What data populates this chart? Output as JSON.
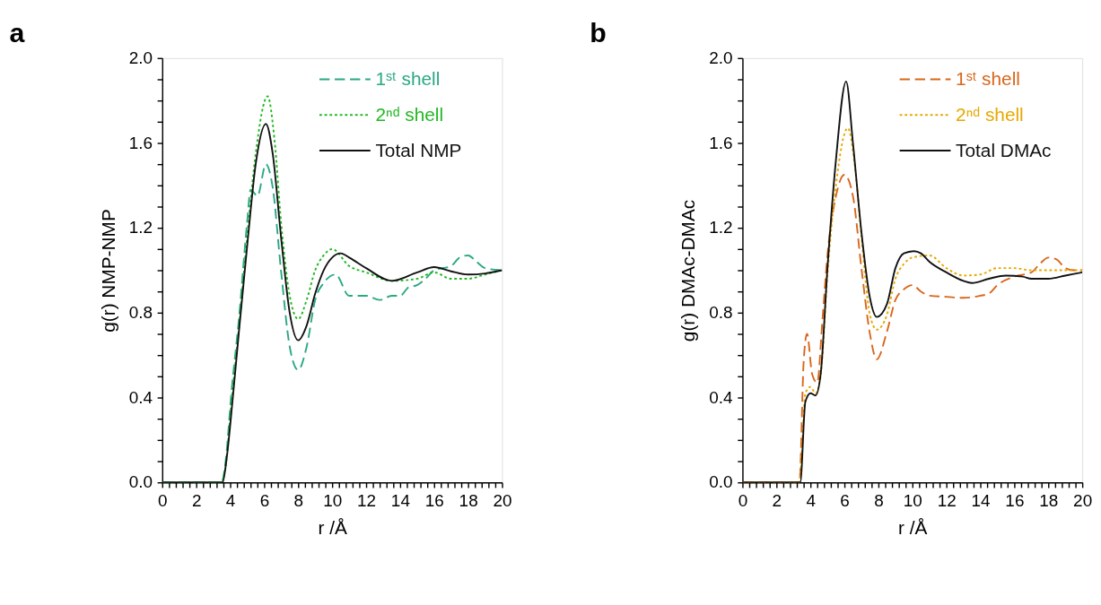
{
  "chart_data": [
    {
      "type": "line",
      "title": "a",
      "xlabel": "r /Å",
      "ylabel": "g(r) NMP-NMP",
      "legend": "top right",
      "xlim": [
        0,
        20
      ],
      "ylim": [
        0,
        2.0
      ],
      "xticks": [
        0,
        {
          "value": 0.4,
          "label": null
        },
        {
          "value": 0.8,
          "label": null
        },
        {
          "value": 1.2,
          "label": null
        },
        {
          "value": 1.6,
          "label": null
        },
        2,
        {
          "value": 2.4,
          "label": null
        },
        {
          "value": 2.8,
          "label": null
        },
        {
          "value": 3.2,
          "label": null
        },
        {
          "value": 3.6,
          "label": null
        },
        4,
        {
          "value": 4.4,
          "label": null
        },
        {
          "value": 4.8,
          "label": null
        },
        {
          "value": 5.2,
          "label": null
        },
        {
          "value": 5.6,
          "label": null
        },
        6,
        {
          "value": 6.4,
          "label": null
        },
        {
          "value": 6.8,
          "label": null
        },
        {
          "value": 7.2,
          "label": null
        },
        {
          "value": 7.6,
          "label": null
        },
        8,
        {
          "value": 8.4,
          "label": null
        },
        {
          "value": 8.8,
          "label": null
        },
        {
          "value": 9.2,
          "label": null
        },
        {
          "value": 9.6,
          "label": null
        },
        10,
        {
          "value": 10.4,
          "label": null
        },
        {
          "value": 10.8,
          "label": null
        },
        {
          "value": 11.2,
          "label": null
        },
        {
          "value": 11.6,
          "label": null
        },
        12,
        {
          "value": 12.4,
          "label": null
        },
        {
          "value": 12.8,
          "label": null
        },
        {
          "value": 13.2,
          "label": null
        },
        {
          "value": 13.6,
          "label": null
        },
        14,
        {
          "value": 14.4,
          "label": null
        },
        {
          "value": 14.8,
          "label": null
        },
        {
          "value": 15.2,
          "label": null
        },
        {
          "value": 15.6,
          "label": null
        },
        16,
        {
          "value": 16.4,
          "label": null
        },
        {
          "value": 16.8,
          "label": null
        },
        {
          "value": 17.2,
          "label": null
        },
        {
          "value": 17.6,
          "label": null
        },
        18,
        {
          "value": 18.4,
          "label": null
        },
        {
          "value": 18.8,
          "label": null
        },
        {
          "value": 19.2,
          "label": null
        },
        {
          "value": 19.6,
          "label": null
        },
        20
      ],
      "yticks": [
        {
          "value": 0,
          "label": "0.0"
        },
        {
          "value": 0.1,
          "label": null
        },
        {
          "value": 0.2,
          "label": null
        },
        {
          "value": 0.3,
          "label": null
        },
        {
          "value": 0.4,
          "label": "0.4"
        },
        {
          "value": 0.5,
          "label": null
        },
        {
          "value": 0.6,
          "label": null
        },
        {
          "value": 0.7,
          "label": null
        },
        {
          "value": 0.8,
          "label": "0.8"
        },
        {
          "value": 0.9,
          "label": null
        },
        {
          "value": 1.0,
          "label": null
        },
        {
          "value": 1.1,
          "label": null
        },
        {
          "value": 1.2,
          "label": "1.2"
        },
        {
          "value": 1.3,
          "label": null
        },
        {
          "value": 1.4,
          "label": null
        },
        {
          "value": 1.5,
          "label": null
        },
        {
          "value": 1.6,
          "label": "1.6"
        },
        {
          "value": 1.7,
          "label": null
        },
        {
          "value": 1.8,
          "label": null
        },
        {
          "value": 1.9,
          "label": null
        },
        {
          "value": 2.0,
          "label": "2.0"
        }
      ],
      "series": [
        {
          "name": "1ˢᵗ shell",
          "color": "#2aa884",
          "line_style": "dashed",
          "x": [
            0,
            2,
            3.5,
            3.7,
            4.1,
            4.5,
            5.0,
            5.2,
            5.6,
            6.1,
            6.5,
            7.0,
            7.5,
            8.0,
            8.5,
            9.0,
            9.5,
            10.2,
            11.0,
            12.0,
            12.8,
            13.5,
            14.0,
            14.5,
            15.0,
            15.5,
            16.0,
            17.0,
            17.5,
            18.0,
            18.5,
            19.0,
            20
          ],
          "values": [
            0,
            0,
            0,
            0.08,
            0.45,
            0.76,
            1.23,
            1.38,
            1.35,
            1.5,
            1.39,
            0.99,
            0.64,
            0.53,
            0.64,
            0.86,
            0.94,
            0.98,
            0.88,
            0.88,
            0.86,
            0.88,
            0.88,
            0.92,
            0.93,
            0.96,
            1.0,
            1.02,
            1.06,
            1.07,
            1.04,
            1.01,
            1.0
          ]
        },
        {
          "name": "2ⁿᵈ shell",
          "color": "#22b822",
          "line_style": "dotted",
          "x": [
            0,
            2,
            3.5,
            3.7,
            4.1,
            4.5,
            5.0,
            5.5,
            6.2,
            6.6,
            7.0,
            7.5,
            8.0,
            8.5,
            9.0,
            9.5,
            10.0,
            11.0,
            12.0,
            13.5,
            15.0,
            16.0,
            17.0,
            18.0,
            19.0,
            20
          ],
          "values": [
            0,
            0,
            0,
            0.06,
            0.4,
            0.72,
            1.16,
            1.55,
            1.82,
            1.62,
            1.22,
            0.88,
            0.77,
            0.86,
            1.0,
            1.07,
            1.1,
            1.02,
            0.99,
            0.95,
            0.96,
            0.99,
            0.96,
            0.96,
            0.98,
            1.0
          ]
        },
        {
          "name": "Total NMP",
          "color": "#111111",
          "line_style": "solid",
          "x": [
            0,
            2,
            3.55,
            3.8,
            4.13,
            4.5,
            5.04,
            5.5,
            6.1,
            6.5,
            7.0,
            7.5,
            8.0,
            8.5,
            9.0,
            9.5,
            10.0,
            10.5,
            11.0,
            12.0,
            13.5,
            15.0,
            16.0,
            17.0,
            18.0,
            19.0,
            20
          ],
          "values": [
            0,
            0,
            0,
            0.12,
            0.38,
            0.7,
            1.15,
            1.5,
            1.69,
            1.55,
            1.15,
            0.8,
            0.67,
            0.74,
            0.89,
            1.0,
            1.06,
            1.08,
            1.06,
            1.01,
            0.95,
            0.99,
            1.015,
            0.995,
            0.98,
            0.985,
            1.0
          ]
        }
      ]
    },
    {
      "type": "line",
      "title": "b",
      "xlabel": "r /Å",
      "ylabel": "g(r) DMAc-DMAc",
      "legend": "top right",
      "xlim": [
        0,
        20
      ],
      "ylim": [
        0,
        2.0
      ],
      "xticks": [
        0,
        {
          "value": 0.4,
          "label": null
        },
        {
          "value": 0.8,
          "label": null
        },
        {
          "value": 1.2,
          "label": null
        },
        {
          "value": 1.6,
          "label": null
        },
        2,
        {
          "value": 2.4,
          "label": null
        },
        {
          "value": 2.8,
          "label": null
        },
        {
          "value": 3.2,
          "label": null
        },
        {
          "value": 3.6,
          "label": null
        },
        4,
        {
          "value": 4.4,
          "label": null
        },
        {
          "value": 4.8,
          "label": null
        },
        {
          "value": 5.2,
          "label": null
        },
        {
          "value": 5.6,
          "label": null
        },
        6,
        {
          "value": 6.4,
          "label": null
        },
        {
          "value": 6.8,
          "label": null
        },
        {
          "value": 7.2,
          "label": null
        },
        {
          "value": 7.6,
          "label": null
        },
        8,
        {
          "value": 8.4,
          "label": null
        },
        {
          "value": 8.8,
          "label": null
        },
        {
          "value": 9.2,
          "label": null
        },
        {
          "value": 9.6,
          "label": null
        },
        10,
        {
          "value": 10.4,
          "label": null
        },
        {
          "value": 10.8,
          "label": null
        },
        {
          "value": 11.2,
          "label": null
        },
        {
          "value": 11.6,
          "label": null
        },
        12,
        {
          "value": 12.4,
          "label": null
        },
        {
          "value": 12.8,
          "label": null
        },
        {
          "value": 13.2,
          "label": null
        },
        {
          "value": 13.6,
          "label": null
        },
        14,
        {
          "value": 14.4,
          "label": null
        },
        {
          "value": 14.8,
          "label": null
        },
        {
          "value": 15.2,
          "label": null
        },
        {
          "value": 15.6,
          "label": null
        },
        16,
        {
          "value": 16.4,
          "label": null
        },
        {
          "value": 16.8,
          "label": null
        },
        {
          "value": 17.2,
          "label": null
        },
        {
          "value": 17.6,
          "label": null
        },
        18,
        {
          "value": 18.4,
          "label": null
        },
        {
          "value": 18.8,
          "label": null
        },
        {
          "value": 19.2,
          "label": null
        },
        {
          "value": 19.6,
          "label": null
        },
        20
      ],
      "yticks": [
        {
          "value": 0,
          "label": "0.0"
        },
        {
          "value": 0.1,
          "label": null
        },
        {
          "value": 0.2,
          "label": null
        },
        {
          "value": 0.3,
          "label": null
        },
        {
          "value": 0.4,
          "label": "0.4"
        },
        {
          "value": 0.5,
          "label": null
        },
        {
          "value": 0.6,
          "label": null
        },
        {
          "value": 0.7,
          "label": null
        },
        {
          "value": 0.8,
          "label": "0.8"
        },
        {
          "value": 0.9,
          "label": null
        },
        {
          "value": 1.0,
          "label": null
        },
        {
          "value": 1.1,
          "label": null
        },
        {
          "value": 1.2,
          "label": "1.2"
        },
        {
          "value": 1.3,
          "label": null
        },
        {
          "value": 1.4,
          "label": null
        },
        {
          "value": 1.5,
          "label": null
        },
        {
          "value": 1.6,
          "label": "1.6"
        },
        {
          "value": 1.7,
          "label": null
        },
        {
          "value": 1.8,
          "label": null
        },
        {
          "value": 1.9,
          "label": null
        },
        {
          "value": 2.0,
          "label": "2.0"
        }
      ],
      "series": [
        {
          "name": "1ˢᵗ shell",
          "color": "#d9661c",
          "line_style": "dashed",
          "x": [
            0,
            2,
            3.35,
            3.6,
            3.8,
            4.1,
            4.4,
            4.7,
            5.0,
            5.5,
            6.0,
            6.5,
            7.0,
            7.5,
            7.9,
            8.5,
            9.0,
            9.5,
            10.0,
            10.5,
            11.0,
            12.0,
            13.0,
            14.0,
            14.5,
            15.0,
            16.0,
            17.0,
            17.5,
            18.0,
            18.5,
            19.0,
            19.5,
            20
          ],
          "values": [
            0,
            0,
            0,
            0.57,
            0.7,
            0.51,
            0.47,
            0.76,
            1.07,
            1.35,
            1.45,
            1.35,
            1.01,
            0.7,
            0.58,
            0.71,
            0.86,
            0.91,
            0.93,
            0.9,
            0.88,
            0.875,
            0.87,
            0.88,
            0.89,
            0.93,
            0.97,
            0.99,
            1.03,
            1.06,
            1.05,
            1.01,
            1.0,
            1.0
          ]
        },
        {
          "name": "2ⁿᵈ shell",
          "color": "#e6a800",
          "line_style": "dotted",
          "x": [
            0,
            2,
            3.35,
            3.7,
            4.0,
            4.3,
            4.6,
            5.0,
            5.5,
            6.2,
            6.6,
            7.0,
            7.5,
            7.9,
            8.5,
            9.0,
            9.5,
            10.0,
            11.0,
            12.0,
            13.0,
            14.0,
            15.0,
            16.0,
            17.0,
            18.0,
            20
          ],
          "values": [
            0,
            0,
            0,
            0.42,
            0.45,
            0.42,
            0.5,
            0.98,
            1.4,
            1.67,
            1.5,
            1.16,
            0.79,
            0.72,
            0.79,
            0.96,
            1.03,
            1.06,
            1.07,
            1.01,
            0.975,
            0.98,
            1.01,
            1.01,
            1.0,
            1.0,
            1.0
          ]
        },
        {
          "name": "Total DMAc",
          "color": "#111111",
          "line_style": "solid",
          "x": [
            0,
            2,
            3.4,
            3.7,
            4.0,
            4.3,
            4.6,
            5.0,
            5.5,
            6.1,
            6.5,
            7.0,
            7.5,
            7.9,
            8.5,
            9.0,
            9.5,
            10.1,
            10.5,
            11.0,
            12.0,
            13.0,
            13.5,
            14.5,
            15.5,
            16.5,
            17.0,
            18.0,
            19.0,
            20
          ],
          "values": [
            0,
            0,
            0,
            0.38,
            0.42,
            0.41,
            0.51,
            1.01,
            1.52,
            1.89,
            1.6,
            1.18,
            0.87,
            0.78,
            0.84,
            1.01,
            1.08,
            1.09,
            1.08,
            1.04,
            0.99,
            0.95,
            0.94,
            0.96,
            0.975,
            0.97,
            0.96,
            0.96,
            0.975,
            0.99
          ]
        }
      ]
    }
  ]
}
